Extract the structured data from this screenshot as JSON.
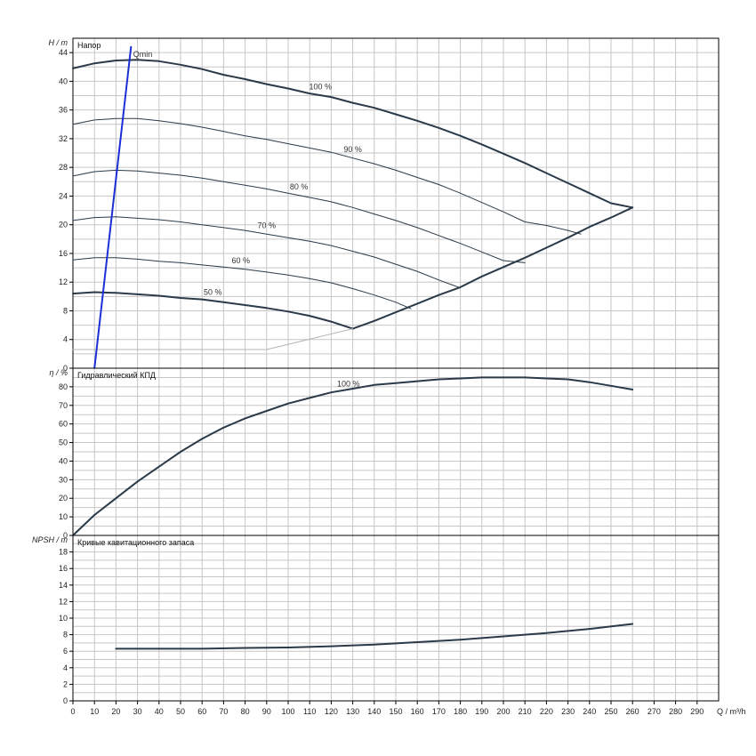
{
  "chart_data": [
    {
      "type": "line",
      "title": "Напор",
      "ylabel": "H / m",
      "xlim": [
        0,
        300
      ],
      "ylim": [
        0,
        46
      ],
      "yticks": [
        0,
        4,
        8,
        12,
        16,
        20,
        24,
        28,
        32,
        36,
        40,
        44
      ],
      "grid": true,
      "series": [
        {
          "name": "100 %",
          "weight": "bold",
          "x": [
            0,
            10,
            20,
            30,
            40,
            50,
            60,
            70,
            80,
            90,
            100,
            110,
            120,
            130,
            140,
            150,
            160,
            170,
            180,
            190,
            200,
            210,
            220,
            230,
            240,
            250,
            260
          ],
          "y": [
            41.8,
            42.5,
            42.9,
            43.0,
            42.8,
            42.3,
            41.7,
            40.9,
            40.3,
            39.6,
            39.0,
            38.3,
            37.8,
            37.0,
            36.3,
            35.4,
            34.5,
            33.5,
            32.4,
            31.2,
            29.9,
            28.6,
            27.2,
            25.8,
            24.4,
            23.0,
            22.4
          ]
        },
        {
          "name": "90 %",
          "weight": "thin",
          "x": [
            0,
            10,
            20,
            30,
            40,
            50,
            60,
            70,
            80,
            90,
            100,
            110,
            120,
            130,
            140,
            150,
            160,
            170,
            180,
            190,
            200,
            210,
            220,
            230,
            236
          ],
          "y": [
            34.0,
            34.6,
            34.8,
            34.8,
            34.5,
            34.1,
            33.6,
            33.0,
            32.4,
            31.9,
            31.3,
            30.7,
            30.1,
            29.3,
            28.5,
            27.6,
            26.6,
            25.6,
            24.4,
            23.1,
            21.8,
            20.4,
            19.9,
            19.2,
            18.7
          ]
        },
        {
          "name": "80 %",
          "weight": "thin",
          "x": [
            0,
            10,
            20,
            30,
            40,
            50,
            60,
            70,
            80,
            90,
            100,
            110,
            120,
            130,
            140,
            150,
            160,
            170,
            180,
            190,
            200,
            210
          ],
          "y": [
            26.8,
            27.4,
            27.6,
            27.5,
            27.2,
            26.9,
            26.5,
            26.0,
            25.5,
            25.0,
            24.4,
            23.8,
            23.2,
            22.4,
            21.5,
            20.6,
            19.6,
            18.5,
            17.4,
            16.2,
            15.0,
            14.7
          ]
        },
        {
          "name": "70 %",
          "weight": "thin",
          "x": [
            0,
            10,
            20,
            30,
            40,
            50,
            60,
            70,
            80,
            90,
            100,
            110,
            120,
            130,
            140,
            150,
            160,
            170,
            180
          ],
          "y": [
            20.6,
            21.0,
            21.1,
            20.9,
            20.7,
            20.4,
            20.0,
            19.6,
            19.2,
            18.7,
            18.2,
            17.7,
            17.1,
            16.3,
            15.5,
            14.5,
            13.5,
            12.3,
            11.2
          ]
        },
        {
          "name": "60 %",
          "weight": "thin",
          "x": [
            0,
            10,
            20,
            30,
            40,
            50,
            60,
            70,
            80,
            90,
            100,
            110,
            120,
            130,
            140,
            150,
            157
          ],
          "y": [
            15.1,
            15.4,
            15.4,
            15.2,
            14.9,
            14.7,
            14.4,
            14.1,
            13.8,
            13.4,
            13.0,
            12.5,
            11.9,
            11.1,
            10.2,
            9.2,
            8.3
          ]
        },
        {
          "name": "50 %",
          "weight": "bold",
          "x": [
            0,
            10,
            20,
            30,
            40,
            50,
            60,
            70,
            80,
            90,
            100,
            110,
            120,
            130
          ],
          "y": [
            10.4,
            10.6,
            10.5,
            10.3,
            10.1,
            9.8,
            9.6,
            9.2,
            8.8,
            8.4,
            7.9,
            7.3,
            6.5,
            5.5
          ]
        },
        {
          "name": "",
          "weight": "bold",
          "x": [
            130,
            140,
            150,
            160,
            170,
            180,
            190,
            200,
            210,
            220,
            230,
            240,
            250,
            260
          ],
          "y": [
            5.5,
            6.6,
            7.8,
            9.0,
            10.2,
            11.3,
            12.8,
            14.1,
            15.4,
            16.8,
            18.2,
            19.7,
            21.0,
            22.4
          ]
        },
        {
          "name": "",
          "weight": "faint",
          "x": [
            0,
            90,
            130
          ],
          "y": [
            2.6,
            2.6,
            5.5
          ]
        },
        {
          "name": "Qmin",
          "weight": "blue",
          "x": [
            10,
            27
          ],
          "y": [
            0,
            44.8
          ]
        }
      ]
    },
    {
      "type": "line",
      "title": "Гидравлический КПД",
      "ylabel": "η / %",
      "xlim": [
        0,
        300
      ],
      "ylim": [
        0,
        90
      ],
      "yticks": [
        0,
        10,
        20,
        30,
        40,
        50,
        60,
        70,
        80
      ],
      "grid": true,
      "series": [
        {
          "name": "100 %",
          "weight": "bold",
          "x": [
            0,
            10,
            20,
            30,
            40,
            50,
            60,
            70,
            80,
            90,
            100,
            110,
            120,
            130,
            140,
            150,
            160,
            170,
            180,
            190,
            200,
            210,
            220,
            230,
            240,
            250,
            260
          ],
          "y": [
            0,
            11,
            20,
            29,
            37,
            45,
            52,
            58,
            63,
            67,
            71,
            74,
            77,
            79,
            81,
            82,
            83,
            84,
            84.5,
            85,
            85,
            85,
            84.5,
            84,
            82.5,
            80.5,
            78.5
          ]
        }
      ]
    },
    {
      "type": "line",
      "title": "Кривые кавитационного запаса",
      "ylabel": "NPSH / m",
      "xlabel": "Q / m³/h",
      "xlim": [
        0,
        300
      ],
      "ylim": [
        0,
        20
      ],
      "yticks": [
        0,
        2,
        4,
        6,
        8,
        10,
        12,
        14,
        16,
        18
      ],
      "xticks": [
        0,
        10,
        20,
        30,
        40,
        50,
        60,
        70,
        80,
        90,
        100,
        110,
        120,
        130,
        140,
        150,
        160,
        170,
        180,
        190,
        200,
        210,
        220,
        230,
        240,
        250,
        260,
        270,
        280,
        290
      ],
      "grid": true,
      "series": [
        {
          "name": "",
          "weight": "bold",
          "x": [
            20,
            40,
            60,
            80,
            100,
            120,
            140,
            160,
            180,
            200,
            220,
            240,
            260
          ],
          "y": [
            6.3,
            6.3,
            6.3,
            6.4,
            6.45,
            6.6,
            6.8,
            7.1,
            7.4,
            7.8,
            8.2,
            8.7,
            9.3
          ]
        }
      ]
    }
  ]
}
